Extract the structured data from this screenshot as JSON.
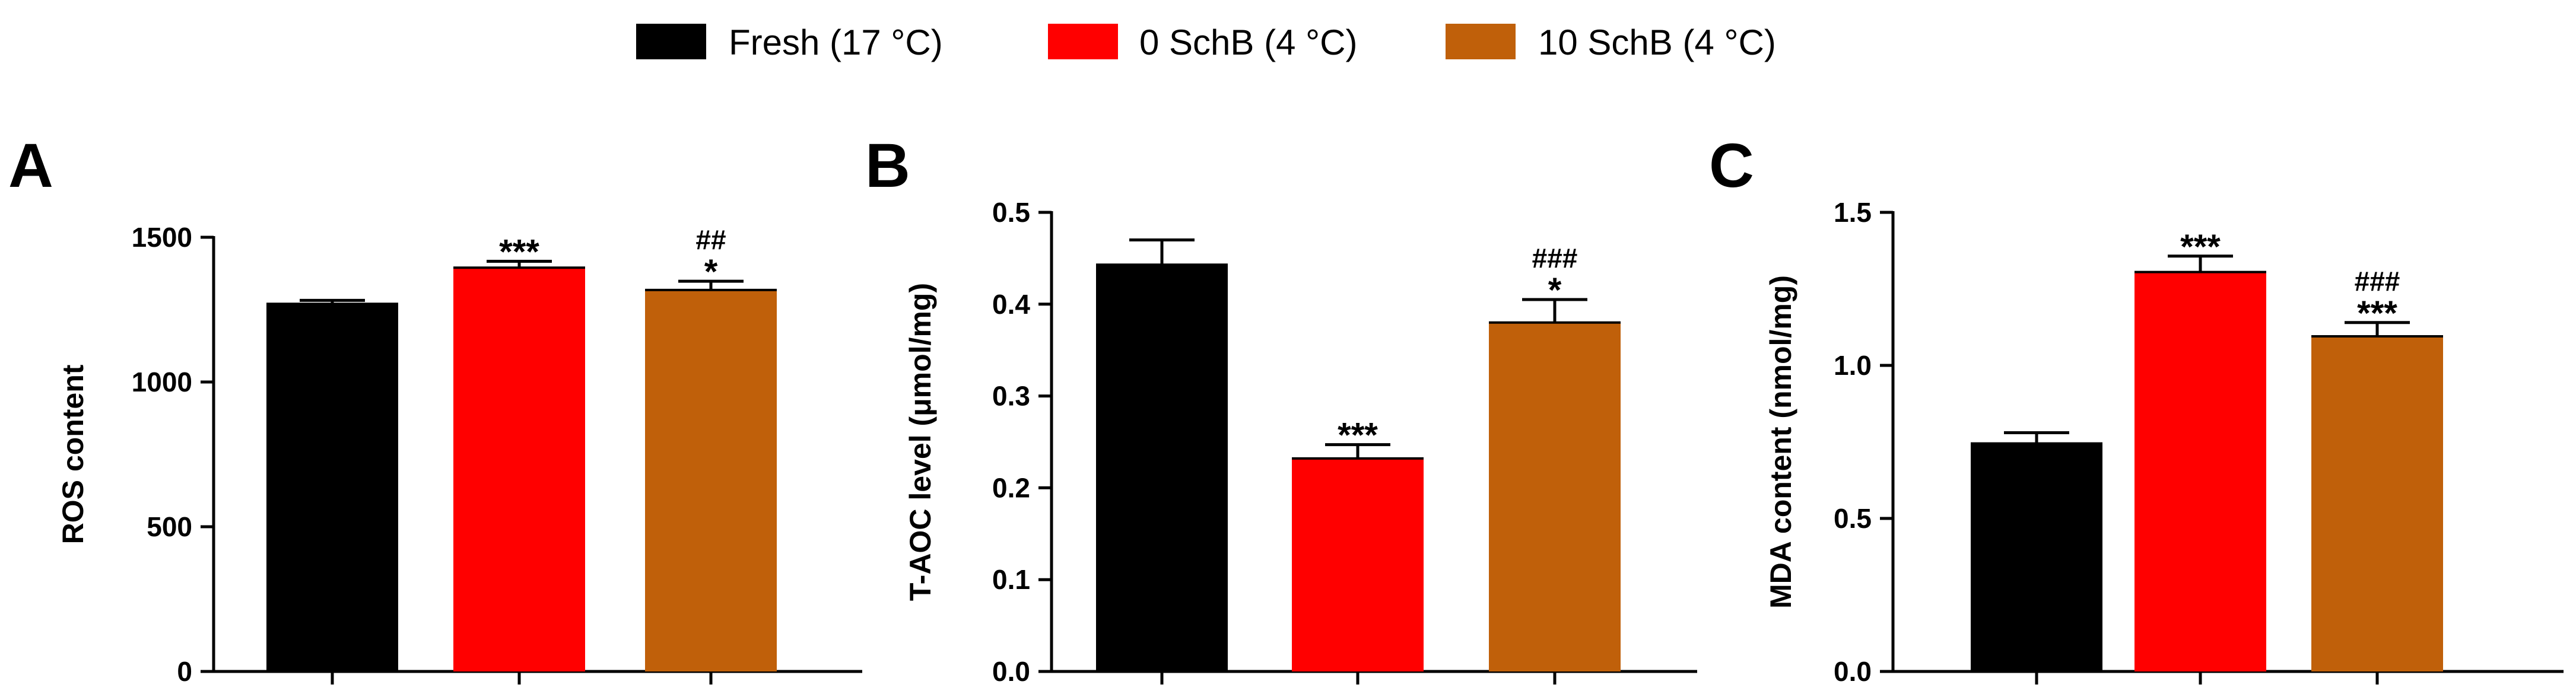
{
  "legend": [
    {
      "label": "Fresh (17 °C)",
      "color": "#000000"
    },
    {
      "label": "0 SchB (4 °C)",
      "color": "#ff0000"
    },
    {
      "label": "10 SchB (4 °C)",
      "color": "#c0600a"
    }
  ],
  "chart_data": [
    {
      "panel": "A",
      "type": "bar",
      "title": "",
      "xlabel": "",
      "ylabel": "ROS content",
      "ylim": [
        0,
        1500
      ],
      "yticks": [
        "0",
        "500",
        "1000",
        "1500"
      ],
      "categories": [
        "Fresh (17 °C)",
        "0 SchB (4 °C)",
        "10 SchB (4 °C)"
      ],
      "values": [
        1270,
        1395,
        1318
      ],
      "errors": [
        12,
        22,
        30
      ],
      "colors": [
        "#000000",
        "#ff0000",
        "#c0600a"
      ],
      "annotations": [
        [],
        [
          "***"
        ],
        [
          "##",
          "*"
        ]
      ]
    },
    {
      "panel": "B",
      "type": "bar",
      "title": "",
      "xlabel": "",
      "ylabel": "T-AOC level (μmol/mg)",
      "ylim": [
        0,
        0.5
      ],
      "yticks": [
        "0.0",
        "0.1",
        "0.2",
        "0.3",
        "0.4",
        "0.5"
      ],
      "categories": [
        "Fresh (17 °C)",
        "0 SchB (4 °C)",
        "10 SchB (4 °C)"
      ],
      "values": [
        0.443,
        0.232,
        0.38
      ],
      "errors": [
        0.027,
        0.015,
        0.025
      ],
      "colors": [
        "#000000",
        "#ff0000",
        "#c0600a"
      ],
      "annotations": [
        [],
        [
          "***"
        ],
        [
          "###",
          "*"
        ]
      ]
    },
    {
      "panel": "C",
      "type": "bar",
      "title": "",
      "xlabel": "",
      "ylabel": "MDA content (nmol/mg)",
      "ylim": [
        0,
        1.5
      ],
      "yticks": [
        "0.0",
        "0.5",
        "1.0",
        "1.5"
      ],
      "categories": [
        "Fresh (17 °C)",
        "0 SchB (4 °C)",
        "10 SchB (4 °C)"
      ],
      "values": [
        0.745,
        1.305,
        1.095
      ],
      "errors": [
        0.035,
        0.052,
        0.045
      ],
      "colors": [
        "#000000",
        "#ff0000",
        "#c0600a"
      ],
      "annotations": [
        [],
        [
          "***"
        ],
        [
          "###",
          "***"
        ]
      ]
    }
  ]
}
